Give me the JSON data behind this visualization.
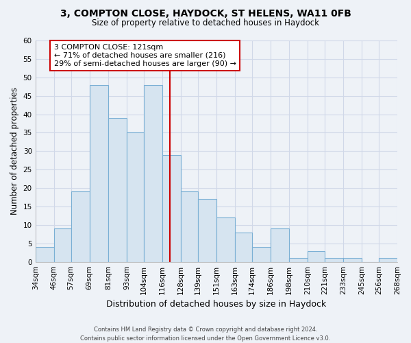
{
  "title": "3, COMPTON CLOSE, HAYDOCK, ST HELENS, WA11 0FB",
  "subtitle": "Size of property relative to detached houses in Haydock",
  "xlabel": "Distribution of detached houses by size in Haydock",
  "ylabel": "Number of detached properties",
  "bin_labels": [
    "34sqm",
    "46sqm",
    "57sqm",
    "69sqm",
    "81sqm",
    "93sqm",
    "104sqm",
    "116sqm",
    "128sqm",
    "139sqm",
    "151sqm",
    "163sqm",
    "174sqm",
    "186sqm",
    "198sqm",
    "210sqm",
    "221sqm",
    "233sqm",
    "245sqm",
    "256sqm",
    "268sqm"
  ],
  "bin_edges": [
    34,
    46,
    57,
    69,
    81,
    93,
    104,
    116,
    128,
    139,
    151,
    163,
    174,
    186,
    198,
    210,
    221,
    233,
    245,
    256,
    268
  ],
  "bar_heights": [
    4,
    9,
    19,
    48,
    39,
    35,
    48,
    29,
    19,
    17,
    12,
    8,
    4,
    9,
    1,
    3,
    1,
    1,
    0,
    1
  ],
  "bar_color": "#d6e4f0",
  "bar_edge_color": "#7aafd4",
  "vline_x": 121,
  "vline_color": "#cc0000",
  "annotation_box_text": "3 COMPTON CLOSE: 121sqm\n← 71% of detached houses are smaller (216)\n29% of semi-detached houses are larger (90) →",
  "annotation_box_color": "#cc0000",
  "annotation_box_fill": "#ffffff",
  "ylim": [
    0,
    60
  ],
  "yticks": [
    0,
    5,
    10,
    15,
    20,
    25,
    30,
    35,
    40,
    45,
    50,
    55,
    60
  ],
  "footer_text": "Contains HM Land Registry data © Crown copyright and database right 2024.\nContains public sector information licensed under the Open Government Licence v3.0.",
  "background_color": "#eef2f7",
  "grid_color": "#d0d8e8"
}
